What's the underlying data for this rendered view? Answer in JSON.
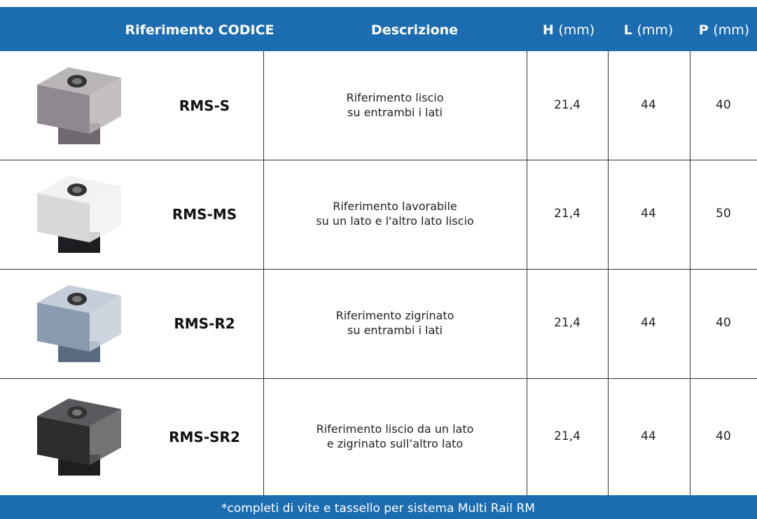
{
  "header": {
    "code": "Riferimento CODICE",
    "description": "Descrizione",
    "h": {
      "letter": "H",
      "unit": "(mm)"
    },
    "l": {
      "letter": "L",
      "unit": "(mm)"
    },
    "p": {
      "letter": "P",
      "unit": "(mm)"
    }
  },
  "table": {
    "rows": [
      {
        "code": "RMS-S",
        "description": [
          "Riferimento liscio",
          "su entrambi i lati"
        ],
        "h": "21,4",
        "l": "44",
        "p": "40"
      },
      {
        "code": "RMS-MS",
        "description": [
          "Riferimento lavorabile",
          "su un lato e l'altro lato liscio"
        ],
        "h": "21,4",
        "l": "44",
        "p": "50"
      },
      {
        "code": "RMS-R2",
        "description": [
          "Riferimento zigrinato",
          "su entrambi i lati"
        ],
        "h": "21,4",
        "l": "44",
        "p": "40"
      },
      {
        "code": "RMS-SR2",
        "description": [
          "Riferimento liscio da un lato",
          "e zigrinato sull’altro lato"
        ],
        "h": "21,4",
        "l": "44",
        "p": "40"
      }
    ]
  },
  "footer": {
    "note": "*completi di vite e tassello per sistema Multi Rail RM"
  }
}
